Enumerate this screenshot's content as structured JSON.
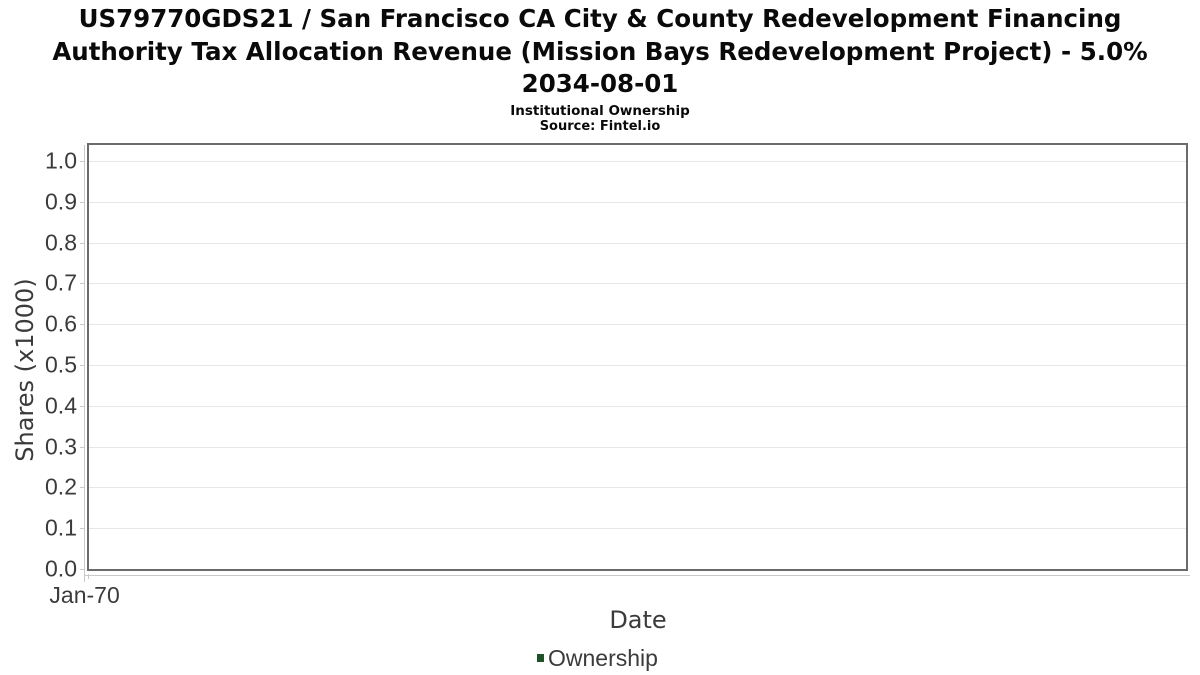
{
  "header": {
    "title_line1": "US79770GDS21 / San Francisco CA City & County Redevelopment Financing",
    "title_line2": "Authority Tax Allocation Revenue (Mission Bays Redevelopment Project) - 5.0%",
    "title_line3": "2034-08-01",
    "subtitle": "Institutional Ownership",
    "source": "Source: Fintel.io"
  },
  "chart_data": {
    "type": "line",
    "title": "US79770GDS21 / San Francisco CA City & County Redevelopment Financing Authority Tax Allocation Revenue (Mission Bays Redevelopment Project) - 5.0% 2034-08-01",
    "subtitle": "Institutional Ownership",
    "source": "Source: Fintel.io",
    "xlabel": "Date",
    "ylabel": "Shares (x1000)",
    "ylim": [
      0.0,
      1.05
    ],
    "ytick_labels": [
      "0.0",
      "0.1",
      "0.2",
      "0.3",
      "0.4",
      "0.5",
      "0.6",
      "0.7",
      "0.8",
      "0.9",
      "1.0"
    ],
    "xtick_labels": [
      "Jan-70"
    ],
    "grid": true,
    "legend_position": "bottom",
    "series": [
      {
        "name": "Ownership",
        "color": "#1e5128",
        "x": [],
        "values": []
      }
    ]
  },
  "legend": {
    "items": [
      {
        "label": "Ownership",
        "color": "#1e5128"
      }
    ]
  },
  "colors": {
    "title_text": "#0a0a0a",
    "axis_text": "#3b3b3b",
    "gridline": "#e7e7e7",
    "axis_line": "#c9c9c9",
    "plot_border": "#6b6b6b",
    "legend_green": "#1e5128",
    "background": "#ffffff"
  }
}
